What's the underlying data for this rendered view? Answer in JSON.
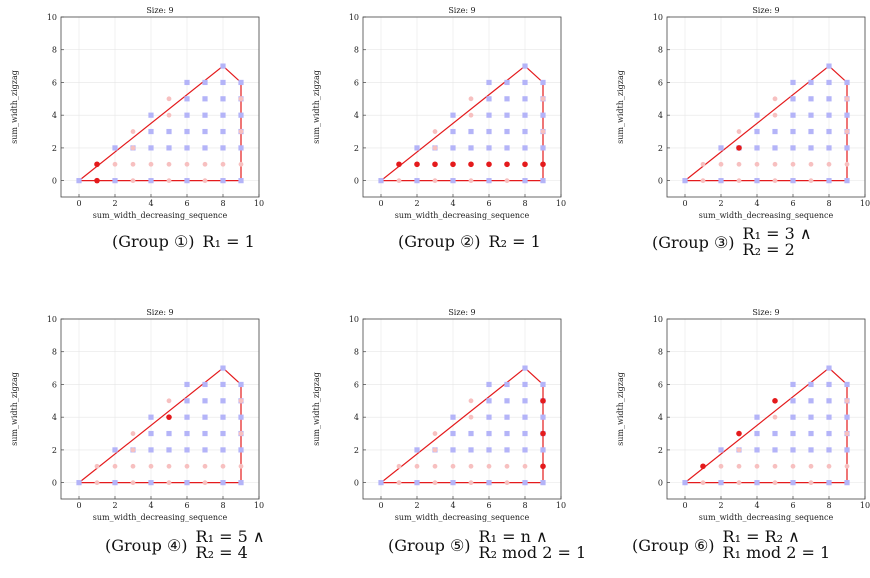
{
  "chart_data": [
    {
      "type": "scatter",
      "title": "Size: 9",
      "xlabel": "sum_width_decreasing_sequence",
      "ylabel": "sum_width_zigzag",
      "xlim": [
        -1,
        10
      ],
      "ylim": [
        -1,
        10
      ],
      "xticks": [
        0,
        2,
        4,
        6,
        8,
        10
      ],
      "yticks": [
        0,
        2,
        4,
        6,
        8,
        10
      ],
      "caption": {
        "group": "(Group ①)",
        "lines": [
          "R₁ = 1"
        ]
      },
      "highlight": [
        [
          1,
          0
        ],
        [
          1,
          1
        ]
      ]
    },
    {
      "type": "scatter",
      "title": "Size: 9",
      "xlabel": "sum_width_decreasing_sequence",
      "ylabel": "sum_width_zigzag",
      "xlim": [
        -1,
        10
      ],
      "ylim": [
        -1,
        10
      ],
      "xticks": [
        0,
        2,
        4,
        6,
        8,
        10
      ],
      "yticks": [
        0,
        2,
        4,
        6,
        8,
        10
      ],
      "caption": {
        "group": "(Group ②)",
        "lines": [
          "R₂ = 1"
        ]
      },
      "highlight": [
        [
          1,
          1
        ],
        [
          2,
          1
        ],
        [
          3,
          1
        ],
        [
          4,
          1
        ],
        [
          5,
          1
        ],
        [
          6,
          1
        ],
        [
          7,
          1
        ],
        [
          8,
          1
        ],
        [
          9,
          1
        ]
      ]
    },
    {
      "type": "scatter",
      "title": "Size: 9",
      "xlabel": "sum_width_decreasing_sequence",
      "ylabel": "sum_width_zigzag",
      "xlim": [
        -1,
        10
      ],
      "ylim": [
        -1,
        10
      ],
      "xticks": [
        0,
        2,
        4,
        6,
        8,
        10
      ],
      "yticks": [
        0,
        2,
        4,
        6,
        8,
        10
      ],
      "caption": {
        "group": "(Group ③)",
        "lines": [
          "R₁ = 3 ∧",
          "R₂ = 2"
        ]
      },
      "highlight": [
        [
          3,
          2
        ]
      ]
    },
    {
      "type": "scatter",
      "title": "Size: 9",
      "xlabel": "sum_width_decreasing_sequence",
      "ylabel": "sum_width_zigzag",
      "xlim": [
        -1,
        10
      ],
      "ylim": [
        -1,
        10
      ],
      "xticks": [
        0,
        2,
        4,
        6,
        8,
        10
      ],
      "yticks": [
        0,
        2,
        4,
        6,
        8,
        10
      ],
      "caption": {
        "group": "(Group ④)",
        "lines": [
          "R₁ = 5 ∧",
          "R₂ = 4"
        ]
      },
      "highlight": [
        [
          5,
          4
        ]
      ]
    },
    {
      "type": "scatter",
      "title": "Size: 9",
      "xlabel": "sum_width_decreasing_sequence",
      "ylabel": "sum_width_zigzag",
      "xlim": [
        -1,
        10
      ],
      "ylim": [
        -1,
        10
      ],
      "xticks": [
        0,
        2,
        4,
        6,
        8,
        10
      ],
      "yticks": [
        0,
        2,
        4,
        6,
        8,
        10
      ],
      "caption": {
        "group": "(Group ⑤)",
        "lines": [
          "R₁ = n ∧",
          "R₂ mod 2 = 1"
        ]
      },
      "highlight": [
        [
          9,
          1
        ],
        [
          9,
          3
        ],
        [
          9,
          5
        ]
      ]
    },
    {
      "type": "scatter",
      "title": "Size: 9",
      "xlabel": "sum_width_decreasing_sequence",
      "ylabel": "sum_width_zigzag",
      "xlim": [
        -1,
        10
      ],
      "ylim": [
        -1,
        10
      ],
      "xticks": [
        0,
        2,
        4,
        6,
        8,
        10
      ],
      "yticks": [
        0,
        2,
        4,
        6,
        8,
        10
      ],
      "caption": {
        "group": "(Group ⑥)",
        "lines": [
          "R₁ = R₂ ∧",
          "R₁ mod 2 = 1"
        ]
      },
      "highlight": [
        [
          1,
          1
        ],
        [
          3,
          3
        ],
        [
          5,
          5
        ]
      ]
    }
  ],
  "common": {
    "square_points": [
      [
        0,
        0
      ],
      [
        2,
        0
      ],
      [
        4,
        0
      ],
      [
        6,
        0
      ],
      [
        8,
        0
      ],
      [
        9,
        0
      ],
      [
        2,
        2
      ],
      [
        3,
        2
      ],
      [
        4,
        2
      ],
      [
        5,
        2
      ],
      [
        6,
        2
      ],
      [
        7,
        2
      ],
      [
        8,
        2
      ],
      [
        9,
        2
      ],
      [
        4,
        3
      ],
      [
        5,
        3
      ],
      [
        6,
        3
      ],
      [
        7,
        3
      ],
      [
        8,
        3
      ],
      [
        9,
        3
      ],
      [
        4,
        4
      ],
      [
        6,
        4
      ],
      [
        7,
        4
      ],
      [
        8,
        4
      ],
      [
        9,
        4
      ],
      [
        6,
        5
      ],
      [
        7,
        5
      ],
      [
        8,
        5
      ],
      [
        9,
        5
      ],
      [
        6,
        6
      ],
      [
        7,
        6
      ],
      [
        8,
        6
      ],
      [
        9,
        6
      ],
      [
        8,
        7
      ]
    ],
    "circle_points": [
      [
        1,
        0
      ],
      [
        3,
        0
      ],
      [
        5,
        0
      ],
      [
        7,
        0
      ],
      [
        1,
        1
      ],
      [
        2,
        1
      ],
      [
        3,
        1
      ],
      [
        4,
        1
      ],
      [
        5,
        1
      ],
      [
        6,
        1
      ],
      [
        7,
        1
      ],
      [
        8,
        1
      ],
      [
        9,
        1
      ],
      [
        3,
        3
      ],
      [
        5,
        5
      ],
      [
        3,
        2
      ],
      [
        5,
        4
      ],
      [
        9,
        3
      ],
      [
        9,
        5
      ]
    ],
    "hull": [
      [
        0,
        0
      ],
      [
        8,
        7
      ],
      [
        9,
        6
      ],
      [
        9,
        0
      ],
      [
        0,
        0
      ]
    ],
    "colors": {
      "square": "#b4b4f8",
      "circle": "#f7c0c0",
      "highlight": "#e41a1c",
      "hull": "#e41a1c",
      "grid": "#e6e6e6",
      "axis": "#444444"
    }
  }
}
